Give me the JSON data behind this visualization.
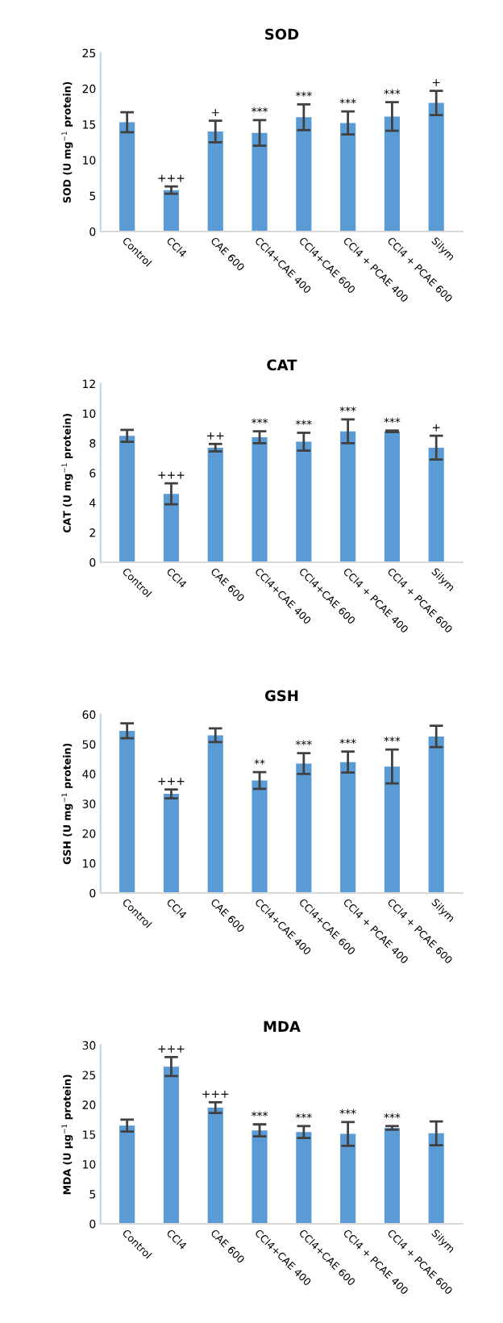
{
  "chart_data": [
    {
      "type": "bar",
      "title": "SOD",
      "ylabel": "SOD (U mg$^{−1}$ protein)",
      "categories": [
        "Control",
        "CCl4",
        "CAE 600",
        "CCl4+CAE 400",
        "CCl4+CAE 600",
        "CCl4 + PCAE 400",
        "CCl4 + PCAE 600",
        "Silym"
      ],
      "series": [
        {
          "color": "#5b9bd5",
          "values": [
            15.3,
            5.8,
            14.0,
            13.8,
            16.0,
            15.2,
            16.1,
            18.0
          ],
          "errors": [
            1.4,
            0.5,
            1.5,
            1.8,
            1.8,
            1.6,
            2.0,
            1.7
          ]
        }
      ],
      "ylim": [
        0,
        25
      ],
      "yticks": [
        0,
        5,
        10,
        15,
        20,
        25
      ],
      "grid": false,
      "legend": false,
      "annotations": [
        {
          "text": "+++",
          "x": "CCl4",
          "y": 6.3
        },
        {
          "text": "+",
          "x": "CAE 600",
          "y": 15.5
        },
        {
          "text": "***",
          "x": "CCl4+CAE 400",
          "y": 15.6
        },
        {
          "text": "***",
          "x": "CCl4+CAE 600",
          "y": 17.8
        },
        {
          "text": "***",
          "x": "CCl4 + PCAE 400",
          "y": 16.8
        },
        {
          "text": "***",
          "x": "CCl4 + PCAE 600",
          "y": 18.1
        },
        {
          "text": "+",
          "x": "Silym",
          "y": 19.7
        }
      ]
    },
    {
      "type": "bar",
      "title": "CAT",
      "ylabel": "CAT (U mg$^{−1}$ protein)",
      "categories": [
        "Control",
        "CCl4",
        "CAE 600",
        "CCl4+CAE 400",
        "CCl4+CAE 600",
        "CCl4 + PCAE 400",
        "CCl4 + PCAE 600",
        "Silym"
      ],
      "series": [
        {
          "color": "#5b9bd5",
          "values": [
            8.5,
            4.6,
            7.7,
            8.4,
            8.1,
            8.8,
            8.8,
            7.7
          ],
          "errors": [
            0.4,
            0.7,
            0.25,
            0.4,
            0.6,
            0.8,
            0.05,
            0.8
          ]
        }
      ],
      "ylim": [
        0,
        12
      ],
      "yticks": [
        0,
        2,
        4,
        6,
        8,
        10,
        12
      ],
      "grid": false,
      "legend": false,
      "annotations": [
        {
          "text": "+++",
          "x": "CCl4",
          "y": 5.3
        },
        {
          "text": "++",
          "x": "CAE 600",
          "y": 7.95
        },
        {
          "text": "***",
          "x": "CCl4+CAE 400",
          "y": 8.8
        },
        {
          "text": "***",
          "x": "CCl4+CAE 600",
          "y": 8.7
        },
        {
          "text": "***",
          "x": "CCl4 + PCAE 400",
          "y": 9.6
        },
        {
          "text": "***",
          "x": "CCl4 + PCAE 600",
          "y": 8.85
        },
        {
          "text": "+",
          "x": "Silym",
          "y": 8.5
        }
      ]
    },
    {
      "type": "bar",
      "title": "GSH",
      "ylabel": "GSH (U mg$^{−1}$ protein)",
      "categories": [
        "Control",
        "CCl4",
        "CAE 600",
        "CCl4+CAE 400",
        "CCl4+CAE 600",
        "CCl4 + PCAE 400",
        "CCl4 + PCAE 600",
        "Silym"
      ],
      "series": [
        {
          "color": "#5b9bd5",
          "values": [
            54.5,
            33.3,
            53.0,
            37.8,
            43.5,
            44.0,
            42.5,
            52.6
          ],
          "errors": [
            2.5,
            1.5,
            2.3,
            2.8,
            3.5,
            3.5,
            5.7,
            3.6
          ]
        }
      ],
      "ylim": [
        0,
        60
      ],
      "yticks": [
        0,
        10,
        20,
        30,
        40,
        50,
        60
      ],
      "grid": false,
      "legend": false,
      "annotations": [
        {
          "text": "+++",
          "x": "CCl4",
          "y": 34.8
        },
        {
          "text": "**",
          "x": "CCl4+CAE 400",
          "y": 40.6
        },
        {
          "text": "***",
          "x": "CCl4+CAE 600",
          "y": 47.0
        },
        {
          "text": "***",
          "x": "CCl4 + PCAE 400",
          "y": 47.5
        },
        {
          "text": "***",
          "x": "CCl4 + PCAE 600",
          "y": 48.2
        }
      ]
    },
    {
      "type": "bar",
      "title": "MDA",
      "ylabel": "MDA (U µg$^{−1}$ protein)",
      "categories": [
        "Control",
        "CCl4",
        "CAE 600",
        "CCl4+CAE 400",
        "CCl4+CAE 600",
        "CCl4 + PCAE 400",
        "CCl4 + PCAE 600",
        "Silym"
      ],
      "series": [
        {
          "color": "#5b9bd5",
          "values": [
            16.5,
            26.4,
            19.5,
            15.7,
            15.4,
            15.1,
            16.1,
            15.2
          ],
          "errors": [
            1.0,
            1.6,
            0.9,
            1.0,
            1.0,
            2.0,
            0.3,
            2.0
          ]
        }
      ],
      "ylim": [
        0,
        30
      ],
      "yticks": [
        0,
        5,
        10,
        15,
        20,
        25,
        30
      ],
      "grid": false,
      "legend": false,
      "annotations": [
        {
          "text": "+++",
          "x": "CCl4",
          "y": 28.0
        },
        {
          "text": "+++",
          "x": "CAE 600",
          "y": 20.4
        },
        {
          "text": "***",
          "x": "CCl4+CAE 400",
          "y": 16.7
        },
        {
          "text": "***",
          "x": "CCl4+CAE 600",
          "y": 16.4
        },
        {
          "text": "***",
          "x": "CCl4 + PCAE 400",
          "y": 17.1
        },
        {
          "text": "***",
          "x": "CCl4 + PCAE 600",
          "y": 16.4
        }
      ]
    }
  ]
}
